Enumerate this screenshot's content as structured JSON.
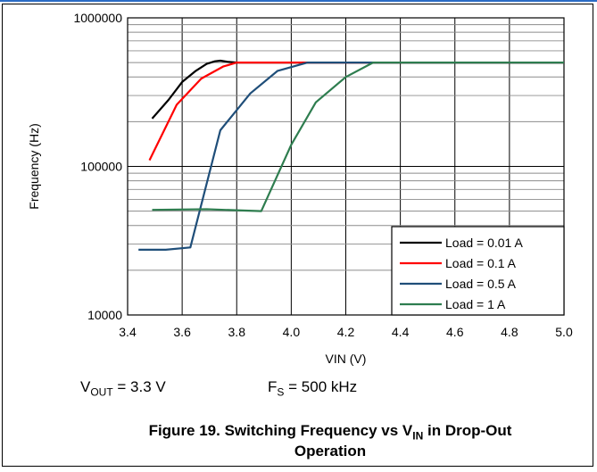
{
  "header_fragment": "",
  "chart_data": {
    "type": "line",
    "title": "",
    "xlabel": "VIN (V)",
    "ylabel": "Frequency (Hz)",
    "xlim": [
      3.4,
      5.0
    ],
    "ylim": [
      10000,
      1000000
    ],
    "yscale": "log",
    "grid": true,
    "legend_position": "bottom-right",
    "x_ticks": [
      "3.4",
      "3.6",
      "3.8",
      "4.0",
      "4.2",
      "4.4",
      "4.6",
      "4.8",
      "5.0"
    ],
    "y_ticks": [
      "10000",
      "100000",
      "1000000"
    ],
    "series": [
      {
        "name": "Load = 0.01 A",
        "color": "#000000",
        "x": [
          3.49,
          3.55,
          3.6,
          3.65,
          3.69,
          3.72,
          3.74,
          3.77,
          3.8,
          5.0
        ],
        "y": [
          210000,
          280000,
          370000,
          440000,
          490000,
          510000,
          515000,
          505000,
          500000,
          500000
        ]
      },
      {
        "name": "Load = 0.1 A",
        "color": "#ff0000",
        "x": [
          3.48,
          3.58,
          3.67,
          3.75,
          3.8,
          5.0
        ],
        "y": [
          110000,
          260000,
          390000,
          470000,
          500000,
          500000
        ]
      },
      {
        "name": "Load = 0.5 A",
        "color": "#1f4e79",
        "x": [
          3.44,
          3.54,
          3.63,
          3.74,
          3.85,
          3.95,
          4.06,
          5.0
        ],
        "y": [
          27500,
          27500,
          28500,
          175000,
          310000,
          440000,
          500000,
          500000
        ]
      },
      {
        "name": "Load = 1 A",
        "color": "#2e7d4f",
        "x": [
          3.49,
          3.69,
          3.89,
          4.0,
          4.09,
          4.2,
          4.3,
          5.0
        ],
        "y": [
          51000,
          51500,
          50000,
          140000,
          270000,
          400000,
          500000,
          500000
        ]
      }
    ]
  },
  "conditions": {
    "vout_main": "V",
    "vout_sub": "OUT",
    "vout_value": " = 3.3 V",
    "fs_main": "F",
    "fs_sub": "S",
    "fs_value": " = 500 kHz"
  },
  "caption": {
    "line1_prefix": "Figure 19. Switching Frequency vs V",
    "line1_sub": "IN",
    "line1_suffix": " in Drop-Out",
    "line2": "Operation"
  }
}
